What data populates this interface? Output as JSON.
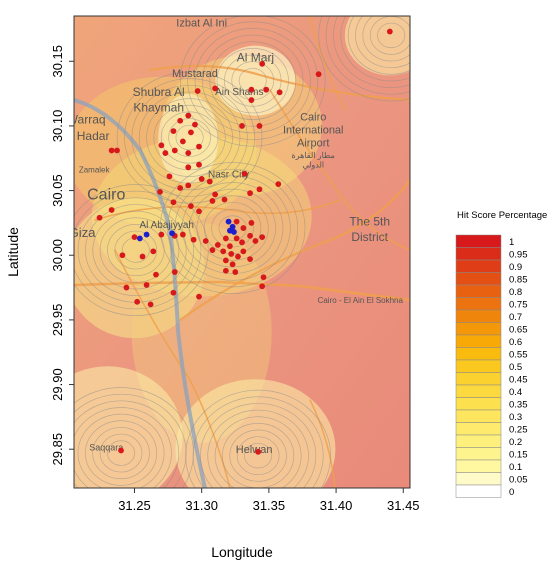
{
  "chart_data": {
    "type": "scatter",
    "title": "",
    "xlabel": "Longitude",
    "ylabel": "Latitude",
    "xlim": [
      31.205,
      31.455
    ],
    "ylim": [
      29.82,
      30.185
    ],
    "x_ticks": [
      "31.25",
      "31.30",
      "31.35",
      "31.40",
      "31.45"
    ],
    "y_ticks": [
      "29.85",
      "29.90",
      "29.95",
      "30.00",
      "30.05",
      "30.10",
      "30.15"
    ],
    "grid": false,
    "legend": {
      "title": "Hit Score Percentage",
      "position": "right",
      "levels": [
        "1",
        "0.95",
        "0.9",
        "0.85",
        "0.8",
        "0.75",
        "0.7",
        "0.65",
        "0.6",
        "0.55",
        "0.5",
        "0.45",
        "0.4",
        "0.35",
        "0.3",
        "0.25",
        "0.2",
        "0.15",
        "0.1",
        "0.05",
        "0"
      ],
      "colors": [
        "#d7191c",
        "#db2b19",
        "#df3d17",
        "#e44f14",
        "#e86111",
        "#ec730f",
        "#f0850c",
        "#f49709",
        "#f8a906",
        "#f9bb0e",
        "#fac81f",
        "#fbd12f",
        "#fcd93f",
        "#fde04e",
        "#fde65e",
        "#feeb6e",
        "#fef07d",
        "#fef48d",
        "#fff8a0",
        "#fffbc8",
        "#ffffff"
      ]
    },
    "series": [
      {
        "color": "#d7191c",
        "points": [
          {
            "x": 31.44,
            "y": 30.173
          },
          {
            "x": 31.345,
            "y": 30.148
          },
          {
            "x": 31.387,
            "y": 30.14
          },
          {
            "x": 31.297,
            "y": 30.127
          },
          {
            "x": 31.31,
            "y": 30.129
          },
          {
            "x": 31.337,
            "y": 30.128
          },
          {
            "x": 31.337,
            "y": 30.12
          },
          {
            "x": 31.358,
            "y": 30.126
          },
          {
            "x": 31.348,
            "y": 30.128
          },
          {
            "x": 31.29,
            "y": 30.108
          },
          {
            "x": 31.284,
            "y": 30.104
          },
          {
            "x": 31.295,
            "y": 30.101
          },
          {
            "x": 31.292,
            "y": 30.095
          },
          {
            "x": 31.279,
            "y": 30.096
          },
          {
            "x": 31.286,
            "y": 30.088
          },
          {
            "x": 31.28,
            "y": 30.081
          },
          {
            "x": 31.29,
            "y": 30.079
          },
          {
            "x": 31.27,
            "y": 30.085
          },
          {
            "x": 31.273,
            "y": 30.079
          },
          {
            "x": 31.237,
            "y": 30.081
          },
          {
            "x": 31.233,
            "y": 30.081
          },
          {
            "x": 31.33,
            "y": 30.1
          },
          {
            "x": 31.343,
            "y": 30.1
          },
          {
            "x": 31.298,
            "y": 30.084
          },
          {
            "x": 31.276,
            "y": 30.061
          },
          {
            "x": 31.29,
            "y": 30.068
          },
          {
            "x": 31.298,
            "y": 30.07
          },
          {
            "x": 31.269,
            "y": 30.049
          },
          {
            "x": 31.284,
            "y": 30.052
          },
          {
            "x": 31.29,
            "y": 30.054
          },
          {
            "x": 31.3,
            "y": 30.059
          },
          {
            "x": 31.306,
            "y": 30.057
          },
          {
            "x": 31.31,
            "y": 30.047
          },
          {
            "x": 31.317,
            "y": 30.043
          },
          {
            "x": 31.308,
            "y": 30.042
          },
          {
            "x": 31.332,
            "y": 30.063
          },
          {
            "x": 31.336,
            "y": 30.048
          },
          {
            "x": 31.343,
            "y": 30.051
          },
          {
            "x": 31.357,
            "y": 30.055
          },
          {
            "x": 31.279,
            "y": 30.041
          },
          {
            "x": 31.292,
            "y": 30.038
          },
          {
            "x": 31.298,
            "y": 30.034
          },
          {
            "x": 31.233,
            "y": 30.035
          },
          {
            "x": 31.224,
            "y": 30.029
          },
          {
            "x": 31.27,
            "y": 30.016
          },
          {
            "x": 31.28,
            "y": 30.015
          },
          {
            "x": 31.286,
            "y": 30.016
          },
          {
            "x": 31.294,
            "y": 30.012
          },
          {
            "x": 31.303,
            "y": 30.011
          },
          {
            "x": 31.312,
            "y": 30.008
          },
          {
            "x": 31.318,
            "y": 30.013
          },
          {
            "x": 31.321,
            "y": 30.007
          },
          {
            "x": 31.326,
            "y": 30.013
          },
          {
            "x": 31.33,
            "y": 30.01
          },
          {
            "x": 31.336,
            "y": 30.015
          },
          {
            "x": 31.331,
            "y": 30.003
          },
          {
            "x": 31.322,
            "y": 30.001
          },
          {
            "x": 31.316,
            "y": 30.003
          },
          {
            "x": 31.308,
            "y": 30.004
          },
          {
            "x": 31.327,
            "y": 29.999
          },
          {
            "x": 31.323,
            "y": 29.993
          },
          {
            "x": 31.318,
            "y": 29.996
          },
          {
            "x": 31.337,
            "y": 30.025
          },
          {
            "x": 31.331,
            "y": 30.021
          },
          {
            "x": 31.326,
            "y": 30.026
          },
          {
            "x": 31.34,
            "y": 30.011
          },
          {
            "x": 31.345,
            "y": 30.014
          },
          {
            "x": 31.25,
            "y": 30.014
          },
          {
            "x": 31.241,
            "y": 30.0
          },
          {
            "x": 31.256,
            "y": 29.999
          },
          {
            "x": 31.264,
            "y": 30.003
          },
          {
            "x": 31.266,
            "y": 29.985
          },
          {
            "x": 31.259,
            "y": 29.977
          },
          {
            "x": 31.244,
            "y": 29.975
          },
          {
            "x": 31.252,
            "y": 29.964
          },
          {
            "x": 31.262,
            "y": 29.962
          },
          {
            "x": 31.28,
            "y": 29.987
          },
          {
            "x": 31.279,
            "y": 29.971
          },
          {
            "x": 31.346,
            "y": 29.983
          },
          {
            "x": 31.345,
            "y": 29.976
          },
          {
            "x": 31.325,
            "y": 29.987
          },
          {
            "x": 31.336,
            "y": 29.997
          },
          {
            "x": 31.298,
            "y": 29.968
          },
          {
            "x": 31.318,
            "y": 29.988
          },
          {
            "x": 31.24,
            "y": 29.849
          },
          {
            "x": 31.342,
            "y": 29.848
          }
        ]
      },
      {
        "color": "#1f1fcc",
        "points": [
          {
            "x": 31.259,
            "y": 30.016
          },
          {
            "x": 31.254,
            "y": 30.013
          },
          {
            "x": 31.278,
            "y": 30.017
          },
          {
            "x": 31.32,
            "y": 30.026
          },
          {
            "x": 31.323,
            "y": 30.022
          },
          {
            "x": 31.321,
            "y": 30.019
          },
          {
            "x": 31.324,
            "y": 30.018
          }
        ]
      }
    ],
    "hotspots": [
      {
        "x": 31.338,
        "y": 30.135
      },
      {
        "x": 31.291,
        "y": 30.091
      },
      {
        "x": 31.251,
        "y": 30.004
      },
      {
        "x": 31.323,
        "y": 30.021
      },
      {
        "x": 31.441,
        "y": 30.17
      },
      {
        "x": 31.24,
        "y": 29.847
      },
      {
        "x": 31.342,
        "y": 29.845
      }
    ]
  },
  "basemap": {
    "place_labels": [
      {
        "text": "Izbat Al Ini",
        "x": 31.3,
        "y": 30.177,
        "size": 11
      },
      {
        "text": "Mustarad",
        "x": 31.295,
        "y": 30.138,
        "size": 11
      },
      {
        "text": "Al Marj",
        "x": 31.34,
        "y": 30.15,
        "size": 12
      },
      {
        "text": "Ain Shams",
        "x": 31.328,
        "y": 30.124,
        "size": 10
      },
      {
        "text": "Shubra Al",
        "x": 31.268,
        "y": 30.123,
        "size": 12
      },
      {
        "text": "Khaymah",
        "x": 31.268,
        "y": 30.111,
        "size": 12
      },
      {
        "text": "Warraq",
        "x": 31.214,
        "y": 30.102,
        "size": 12
      },
      {
        "text": "Al Hadar",
        "x": 31.214,
        "y": 30.089,
        "size": 12
      },
      {
        "text": "Cairo",
        "x": 31.383,
        "y": 30.104,
        "size": 11
      },
      {
        "text": "International",
        "x": 31.383,
        "y": 30.094,
        "size": 11
      },
      {
        "text": "Airport",
        "x": 31.383,
        "y": 30.084,
        "size": 11
      },
      {
        "text": "مطار القاهرة",
        "x": 31.383,
        "y": 30.075,
        "size": 8
      },
      {
        "text": "الدولي",
        "x": 31.383,
        "y": 30.068,
        "size": 8
      },
      {
        "text": "Zamalek",
        "x": 31.22,
        "y": 30.064,
        "size": 8
      },
      {
        "text": "Nasr City",
        "x": 31.32,
        "y": 30.06,
        "size": 10
      },
      {
        "text": "Cairo",
        "x": 31.229,
        "y": 30.043,
        "size": 16
      },
      {
        "text": "Al Abajiyyah",
        "x": 31.274,
        "y": 30.021,
        "size": 10
      },
      {
        "text": "Giza",
        "x": 31.211,
        "y": 30.014,
        "size": 13
      },
      {
        "text": "The 5th",
        "x": 31.425,
        "y": 30.023,
        "size": 12
      },
      {
        "text": "District",
        "x": 31.425,
        "y": 30.011,
        "size": 12
      },
      {
        "text": "Cairo - El Ain El Sokhna",
        "x": 31.418,
        "y": 29.963,
        "size": 8
      },
      {
        "text": "Saqqara",
        "x": 31.229,
        "y": 29.849,
        "size": 9
      },
      {
        "text": "Helwan",
        "x": 31.339,
        "y": 29.847,
        "size": 11
      }
    ],
    "river_color": "#8ba2be",
    "road_color": "#f0a04b"
  }
}
